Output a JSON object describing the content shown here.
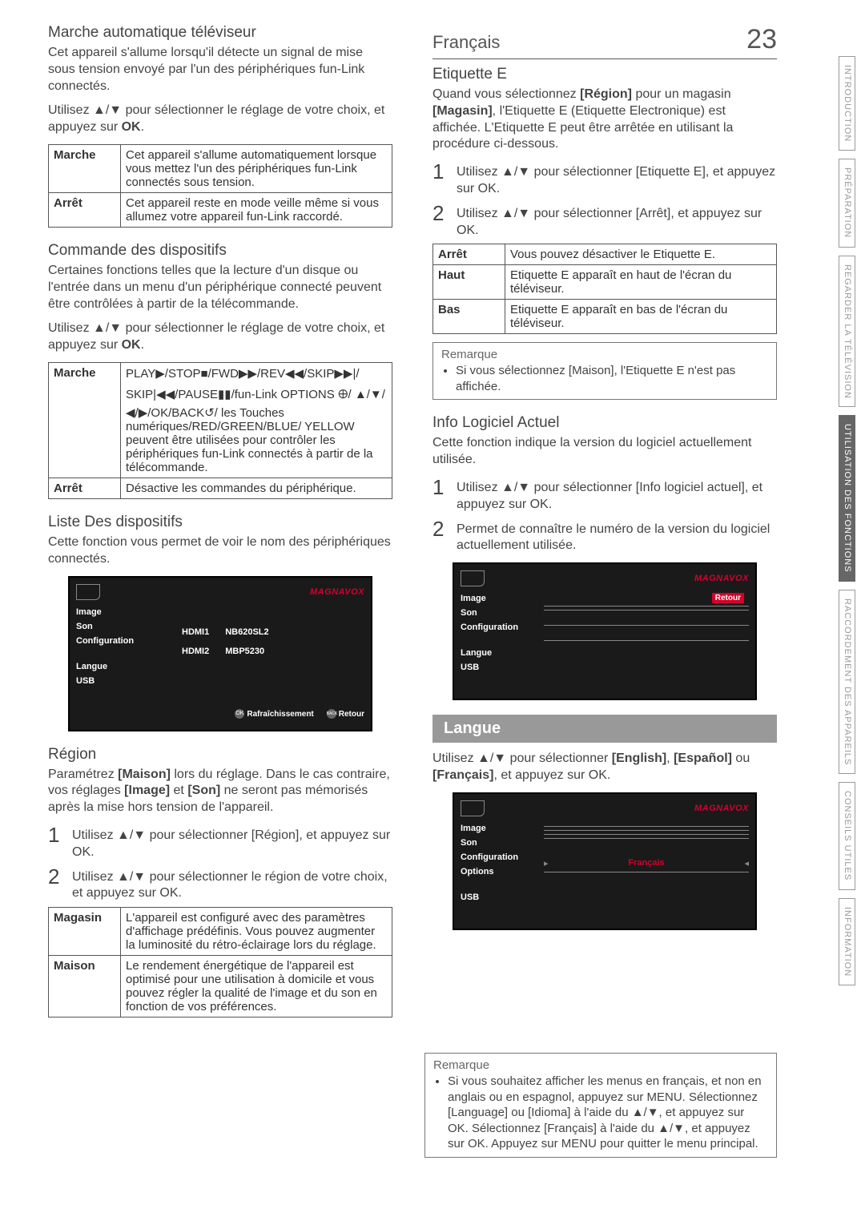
{
  "page": {
    "lang": "Français",
    "number": "23"
  },
  "sideTabs": [
    {
      "label": "INTRODUCTION",
      "active": false
    },
    {
      "label": "PRÉPARATION",
      "active": false
    },
    {
      "label": "REGARDER LA\nTÉLÉVISION",
      "active": false
    },
    {
      "label": "UTILISATION DES\nFONCTIONS",
      "active": true
    },
    {
      "label": "RACCORDEMENT\nDES APPAREILS",
      "active": false
    },
    {
      "label": "CONSEILS UTILES",
      "active": false
    },
    {
      "label": "INFORMATION",
      "active": false
    }
  ],
  "left": {
    "s1": {
      "heading": "Marche automatique téléviseur",
      "p1": "Cet appareil s'allume lorsqu'il détecte un signal de mise sous tension envoyé par l'un des périphériques fun-Link connectés.",
      "p2_pre": "Utilisez ",
      "p2_post": " pour sélectionner le réglage de votre choix, et appuyez sur ",
      "p2_ok": "OK",
      "p2_end": ".",
      "rows": [
        {
          "k": "Marche",
          "v": "Cet appareil s'allume automatiquement lorsque vous mettez l'un des périphériques fun-Link connectés sous tension."
        },
        {
          "k": "Arrêt",
          "v": "Cet appareil reste en mode veille même si vous allumez votre appareil fun-Link raccordé."
        }
      ]
    },
    "s2": {
      "heading": "Commande des dispositifs",
      "p1": "Certaines fonctions telles que la lecture d'un disque ou l'entrée dans un menu d'un périphérique connecté peuvent être contrôlées à partir de la télécommande.",
      "p2_pre": "Utilisez ",
      "p2_post": " pour sélectionner le réglage de votre choix, et appuyez sur ",
      "p2_ok": "OK",
      "p2_end": ".",
      "rows": [
        {
          "k": "Marche",
          "v": "PLAY▶/STOP■/FWD▶▶/REV◀◀/SKIP▶▶|/ SKIP|◀◀/PAUSE▮▮/fun-Link OPTIONS 🜨/ ▲/▼/◀/▶/OK/BACK↺/ les Touches numériques/RED/GREEN/BLUE/ YELLOW peuvent être utilisées pour contrôler les périphériques fun-Link connectés à partir de la télécommande."
        },
        {
          "k": "Arrêt",
          "v": "Désactive les commandes du périphérique."
        }
      ]
    },
    "s3": {
      "heading": "Liste Des dispositifs",
      "p1": "Cette fonction vous permet de voir le nom des périphériques connectés."
    },
    "ui1": {
      "brand": "MAGNAVOX",
      "menu": [
        "Image",
        "Son",
        "Configuration",
        "",
        "Langue",
        "USB"
      ],
      "devrows": [
        {
          "port": "HDMI1",
          "name": "NB620SL2"
        },
        {
          "port": "HDMI2",
          "name": "MBP5230"
        }
      ],
      "bottom": {
        "refresh": "Rafraîchissement",
        "ok": "OK",
        "back": "BACK",
        "retour": "Retour"
      }
    },
    "s4": {
      "heading": "Région",
      "p1_a": "Paramétrez ",
      "p1_b": "[Maison]",
      "p1_c": " lors du réglage. Dans le cas contraire, vos réglages ",
      "p1_d": "[Image]",
      "p1_e": " et ",
      "p1_f": "[Son]",
      "p1_g": " ne seront pas mémorisés après la mise hors tension de l'appareil.",
      "steps": [
        "Utilisez ▲/▼ pour sélectionner [Région], et appuyez sur OK.",
        "Utilisez ▲/▼ pour sélectionner le région de votre choix, et appuyez sur OK."
      ],
      "rows": [
        {
          "k": "Magasin",
          "v": "L'appareil est configuré avec des paramètres d'affichage prédéfinis. Vous pouvez augmenter la luminosité du rétro-éclairage lors du réglage."
        },
        {
          "k": "Maison",
          "v": "Le rendement énergétique de l'appareil est optimisé pour une utilisation à domicile et vous pouvez régler la qualité de l'image et du son en fonction de vos préférences."
        }
      ]
    }
  },
  "right": {
    "s1": {
      "heading": "Etiquette E",
      "p1_a": "Quand vous sélectionnez ",
      "p1_b": "[Région]",
      "p1_c": " pour un magasin ",
      "p1_d": "[Magasin]",
      "p1_e": ", l'Etiquette E (Etiquette Electronique) est affichée. L'Etiquette E peut être arrêtée en utilisant la procédure ci-dessous.",
      "steps": [
        "Utilisez ▲/▼ pour sélectionner [Etiquette E], et appuyez sur OK.",
        "Utilisez ▲/▼ pour sélectionner [Arrêt], et appuyez sur OK."
      ],
      "rows": [
        {
          "k": "Arrêt",
          "v": "Vous pouvez désactiver le Etiquette E."
        },
        {
          "k": "Haut",
          "v": "Etiquette E apparaît en haut de l'écran du téléviseur."
        },
        {
          "k": "Bas",
          "v": "Etiquette E apparaît en bas de l'écran du téléviseur."
        }
      ],
      "remark": {
        "title": "Remarque",
        "item": "Si vous sélectionnez [Maison], l'Etiquette E n'est pas affichée."
      }
    },
    "s2": {
      "heading": "Info Logiciel Actuel",
      "p1": "Cette fonction indique la version du logiciel actuellement utilisée.",
      "steps": [
        "Utilisez ▲/▼ pour sélectionner [Info logiciel actuel], et appuyez sur OK.",
        "Permet de connaître le numéro de la version du logiciel actuellement utilisée."
      ]
    },
    "ui2": {
      "brand": "MAGNAVOX",
      "menu": [
        "Image",
        "Son",
        "Configuration",
        "",
        "Langue",
        "USB"
      ],
      "retour": "Retour"
    },
    "langue": {
      "banner": "Langue",
      "p_a": "Utilisez ▲/▼ pour sélectionner ",
      "p_b": "[English]",
      "p_c": ", ",
      "p_d": "[Español]",
      "p_e": " ou ",
      "p_f": "[Français]",
      "p_g": ", et appuyez sur OK."
    },
    "ui3": {
      "brand": "MAGNAVOX",
      "menu": [
        "Image",
        "Son",
        "Configuration",
        "Options",
        "",
        "USB"
      ],
      "lang_value": "Français"
    }
  },
  "bottomRemark": {
    "title": "Remarque",
    "text": "Si vous souhaitez afficher les menus en français, et non en anglais ou en espagnol, appuyez sur MENU. Sélectionnez [Language] ou [Idioma] à l'aide du ▲/▼, et appuyez sur OK. Sélectionnez [Français] à l'aide du ▲/▼, et appuyez sur OK. Appuyez sur MENU pour quitter le menu principal."
  }
}
